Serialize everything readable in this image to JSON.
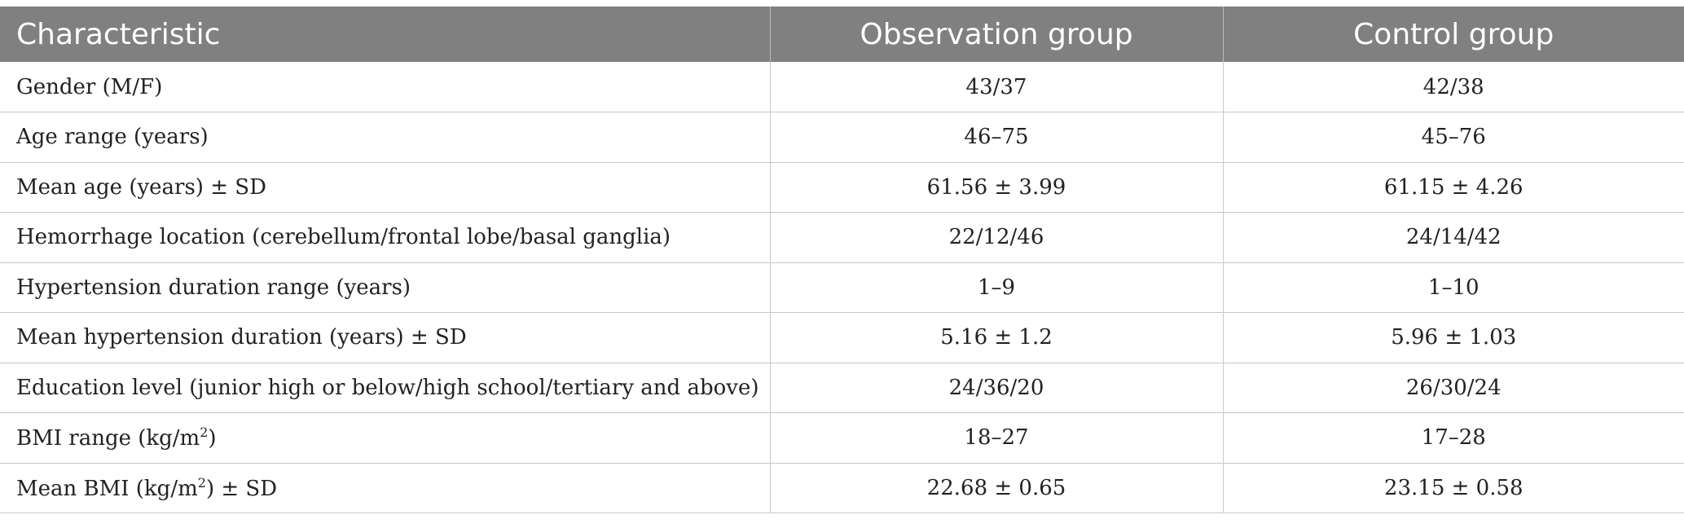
{
  "table": {
    "headers": [
      "Characteristic",
      "Observation group",
      "Control group"
    ],
    "rows": [
      {
        "label": "Gender (M/F)",
        "obs": "43/37",
        "ctrl": "42/38"
      },
      {
        "label": "Age range (years)",
        "obs": "46–75",
        "ctrl": "45–76"
      },
      {
        "label": "Mean age (years) ± SD",
        "obs": "61.56 ± 3.99",
        "ctrl": "61.15 ± 4.26"
      },
      {
        "label": "Hemorrhage location (cerebellum/frontal lobe/basal ganglia)",
        "obs": "22/12/46",
        "ctrl": "24/14/42"
      },
      {
        "label": "Hypertension duration range (years)",
        "obs": "1–9",
        "ctrl": "1–10"
      },
      {
        "label": "Mean hypertension duration (years) ± SD",
        "obs": "5.16 ± 1.2",
        "ctrl": "5.96 ± 1.03"
      },
      {
        "label": "Education level (junior high or below/high school/tertiary and above)",
        "obs": "24/36/20",
        "ctrl": "26/30/24"
      },
      {
        "label_pre": "BMI range (kg/m",
        "label_sup": "2",
        "label_post": ")",
        "obs": "18–27",
        "ctrl": "17–28"
      },
      {
        "label_pre": "Mean BMI (kg/m",
        "label_sup": "2",
        "label_post": ") ± SD",
        "obs": "22.68 ± 0.65",
        "ctrl": "23.15 ± 0.58"
      }
    ]
  }
}
